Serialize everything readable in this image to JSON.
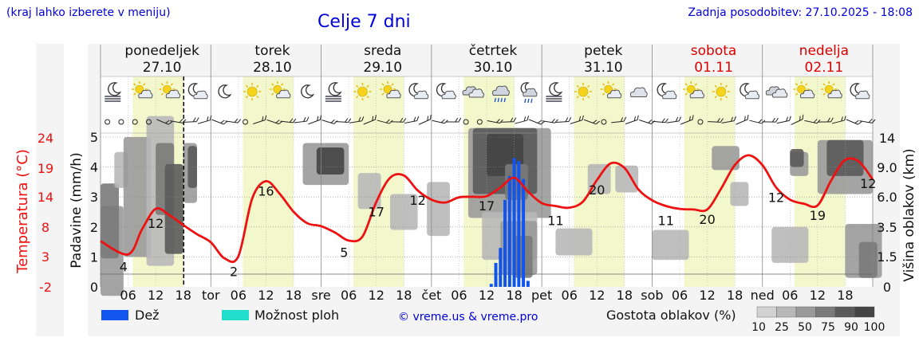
{
  "header": {
    "menu_hint": "(kraj lahko izberete v meniju)",
    "title": "Celje 7 dni",
    "updated": "Zadnja posodobitev: 27.10.2025 - 18:08"
  },
  "colors": {
    "temperature": "#ee1111",
    "rain": "#1155ee",
    "storm": "#22ddcc",
    "daytime_band": "#f2f7cc",
    "weekend": "#dd0000",
    "clouds": [
      "#d2d2d2",
      "#b8b8b8",
      "#9a9a9a",
      "#7a7a7a",
      "#5a5a5a",
      "#444444"
    ]
  },
  "days": [
    {
      "name": "ponedeljek",
      "date": "27.10",
      "weekend": false
    },
    {
      "name": "torek",
      "date": "28.10",
      "weekend": false
    },
    {
      "name": "sreda",
      "date": "29.10",
      "weekend": false
    },
    {
      "name": "četrtek",
      "date": "30.10",
      "weekend": false
    },
    {
      "name": "petek",
      "date": "31.10",
      "weekend": false
    },
    {
      "name": "sobota",
      "date": "01.11",
      "weekend": true
    },
    {
      "name": "nedelja",
      "date": "02.11",
      "weekend": true
    }
  ],
  "weather_icons": [
    "fog-moon-icon",
    "partly-cloudy-sun-icon",
    "partly-cloudy-sun-icon",
    "cloudy-moon-icon",
    "clear-moon-icon",
    "sun-icon",
    "partly-cloudy-sun-icon",
    "clear-moon-icon",
    "fog-moon-icon",
    "sun-icon",
    "partly-cloudy-sun-icon",
    "cloudy-moon-icon",
    "cloudy-moon-icon",
    "overcast-icon",
    "rain-cloud-icon",
    "rain-cloud-moon-icon",
    "fog-moon-icon",
    "sun-icon",
    "partly-cloudy-sun-icon",
    "cloudy-icon",
    "cloudy-moon-icon",
    "partly-cloudy-sun-icon",
    "sun-icon",
    "cloudy-moon-icon",
    "overcast-icon",
    "partly-cloudy-sun-icon",
    "partly-cloudy-sun-icon",
    "cloudy-moon-icon"
  ],
  "chart_data": {
    "type": "line",
    "axes": {
      "precip": {
        "label": "Padavine (mm/h)",
        "ticks": [
          "0",
          "1",
          "2",
          "3",
          "4",
          "5"
        ],
        "range": [
          0,
          5
        ]
      },
      "temperature": {
        "label": "Temperatura (°C)",
        "ticks": [
          "-2",
          "3",
          "8",
          "14",
          "19",
          "24"
        ]
      },
      "cloud_height": {
        "label": "Višina oblakov (km)",
        "ticks": [
          "0",
          "1.5",
          "3.5",
          "6.0",
          "9.0",
          "14"
        ]
      }
    },
    "x_hours": {
      "hours_labels": [
        "06",
        "12",
        "18"
      ],
      "midnight_labels": [
        "tor",
        "sre",
        "čet",
        "pet",
        "sob",
        "ned"
      ],
      "forecast_hours": 168,
      "now_hour": 18.1
    },
    "temperature_series": {
      "hours": [
        0,
        6,
        9,
        12,
        15,
        18,
        21,
        24,
        27,
        30,
        33,
        36,
        39,
        42,
        45,
        48,
        51,
        54,
        57,
        60,
        63,
        66,
        69,
        72,
        75,
        78,
        81,
        84,
        87,
        90,
        93,
        96,
        99,
        102,
        105,
        108,
        111,
        114,
        117,
        120,
        123,
        126,
        129,
        132,
        135,
        138,
        141,
        144,
        147,
        150,
        153,
        156,
        159,
        162,
        165,
        168
      ],
      "values": [
        5.8,
        3.5,
        7.8,
        11.4,
        10.3,
        8.6,
        7.0,
        5.6,
        2.8,
        3.2,
        13.2,
        16.2,
        14.0,
        10.9,
        8.9,
        8.4,
        7.3,
        5.9,
        6.6,
        12.6,
        16.8,
        17.2,
        14.6,
        13.0,
        12.5,
        13.4,
        13.5,
        13.6,
        15.1,
        16.8,
        14.4,
        12.4,
        11.9,
        11.6,
        12.7,
        16.4,
        19.3,
        18.5,
        14.8,
        12.9,
        11.9,
        11.4,
        11.3,
        11.3,
        14.9,
        19.0,
        20.7,
        19.0,
        15.1,
        13.0,
        12.3,
        12.0,
        16.4,
        19.9,
        19.6,
        16.5
      ]
    },
    "temperature_labels": [
      {
        "hour": 5,
        "text": "4"
      },
      {
        "hour": 12,
        "text": "12"
      },
      {
        "hour": 29,
        "text": "2"
      },
      {
        "hour": 36,
        "text": "16"
      },
      {
        "hour": 53,
        "text": "5"
      },
      {
        "hour": 60,
        "text": "17"
      },
      {
        "hour": 69,
        "text": "12"
      },
      {
        "hour": 84,
        "text": "17"
      },
      {
        "hour": 99,
        "text": "11"
      },
      {
        "hour": 108,
        "text": "20"
      },
      {
        "hour": 123,
        "text": "11"
      },
      {
        "hour": 132,
        "text": "20"
      },
      {
        "hour": 147,
        "text": "12"
      },
      {
        "hour": 156,
        "text": "19"
      },
      {
        "hour": 167,
        "text": "12"
      }
    ],
    "rain_bars": {
      "hours": [
        85,
        86,
        87,
        88,
        89,
        90,
        91,
        92,
        93
      ],
      "values": [
        0.1,
        0.8,
        1.3,
        2.9,
        3.7,
        4.3,
        4.2,
        3.6,
        0.2
      ]
    },
    "cloud_cover_legend": [
      "10",
      "25",
      "50",
      "75",
      "90",
      "100"
    ]
  },
  "legend": {
    "rain_label": "Dež",
    "storm_label": "Možnost ploh",
    "cloud_density_label": "Gostota oblakov (%)",
    "credit": "© vreme.us & vreme.pro"
  }
}
